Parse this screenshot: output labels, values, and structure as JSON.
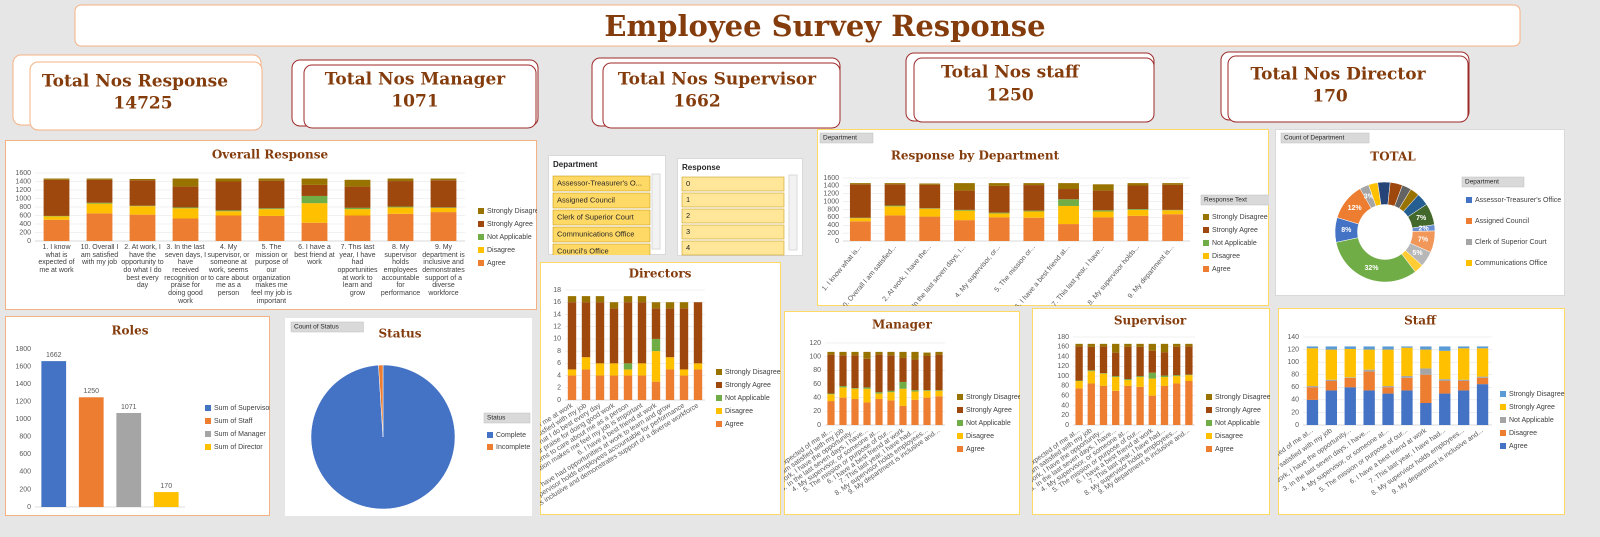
{
  "header": {
    "title": "Employee Survey Response"
  },
  "kpis": [
    {
      "label": "Total Nos Response",
      "value": 14725
    },
    {
      "label": "Total Nos Manager",
      "value": 1071
    },
    {
      "label": "Total Nos Supervisor",
      "value": 1662
    },
    {
      "label": "Total Nos staff",
      "value": 1250
    },
    {
      "label": "Total Nos Director",
      "value": 170
    }
  ],
  "slicers": [
    {
      "title": "Department",
      "items": [
        "Assessor-Treasurer's O...",
        "Assigned Council",
        "Clerk of Superior Court",
        "Communications Office",
        "Council's Office"
      ]
    },
    {
      "title": "Response",
      "items": [
        "0",
        "1",
        "2",
        "3",
        "4"
      ]
    }
  ],
  "chart_data": [
    {
      "type": "bar",
      "title": "Overall Response",
      "grid": true,
      "categories": [
        "1. I know what is expected of me at work",
        "10. Overall I am satisfied with my job",
        "2. At work, I have the opportunity to do what I do best every day",
        "3. In the last seven days, I have received recognition or praise for doing good work",
        "4. My supervisor, or someone at work, seems to care about me as a person",
        "5. The mission or purpose of our organization makes me feel my job is important",
        "6. I have a best friend at work",
        "7. This last year, I have had opportunities at work to learn and grow",
        "8. My supervisor holds employees accountable for performance",
        "9. My department is inclusive and demonstrates support of a diverse workforce"
      ],
      "series": [
        {
          "name": "Agree",
          "color": "#ed7d31",
          "values": [
            500,
            650,
            620,
            530,
            600,
            590,
            430,
            600,
            640,
            680
          ]
        },
        {
          "name": "Disagree",
          "color": "#ffc000",
          "values": [
            80,
            230,
            200,
            240,
            100,
            160,
            460,
            150,
            150,
            100
          ]
        },
        {
          "name": "Not Applicable",
          "color": "#70ad47",
          "values": [
            10,
            20,
            10,
            20,
            20,
            20,
            170,
            30,
            20,
            10
          ]
        },
        {
          "name": "Strongly Agree",
          "color": "#9e480e",
          "values": [
            850,
            540,
            600,
            490,
            680,
            650,
            260,
            500,
            600,
            640
          ]
        },
        {
          "name": "Strongly Disagree",
          "color": "#997300",
          "values": [
            30,
            30,
            30,
            190,
            70,
            50,
            150,
            160,
            60,
            40
          ]
        }
      ],
      "ylim": [
        0,
        1600
      ],
      "yticks": [
        0,
        200,
        400,
        600,
        800,
        1000,
        1200,
        1400,
        1600
      ],
      "legend": "right"
    },
    {
      "type": "bar",
      "title": "Roles",
      "grid": false,
      "categories": [
        "Sum of Supervisor",
        "Sum of Staff",
        "Sum of Manager",
        "Sum of Director"
      ],
      "values": [
        1662,
        1250,
        1071,
        170
      ],
      "colors": [
        "#4472c4",
        "#ed7d31",
        "#a5a5a5",
        "#ffc000"
      ],
      "ylim": [
        0,
        1800
      ],
      "yticks": [
        0,
        200,
        400,
        600,
        800,
        1000,
        1200,
        1400,
        1600,
        1800
      ],
      "legend": "right"
    },
    {
      "type": "pie",
      "title": "Status",
      "button": "Count of Status",
      "legend_title": "Status",
      "categories": [
        "Complete",
        "Incomplete"
      ],
      "values": [
        99,
        1
      ],
      "colors": [
        "#4472c4",
        "#ed7d31"
      ],
      "legend": "right"
    },
    {
      "type": "bar",
      "title": "Directors",
      "grid": true,
      "categories": [
        "1. I know what is expected of me at work",
        "10. Overall I am satisfied with my job",
        "2. At work, I have the opportunity to do what I do best every day",
        "3. In the last seven days, I have received recognition or praise for doing good work",
        "4. My supervisor, or someone at work, seems to care about me as a person",
        "5. The mission or purpose of our organization makes me feel my job is important",
        "6. I have a best friend at work",
        "7. This last year, I have had opportunities at work to learn and grow",
        "8. My supervisor holds employees accountable for performance",
        "9. My department is inclusive and demonstrates support of a diverse workforce"
      ],
      "series": [
        {
          "name": "Agree",
          "color": "#ed7d31",
          "values": [
            4,
            5,
            4,
            4,
            4,
            4,
            3,
            5,
            4,
            5
          ]
        },
        {
          "name": "Disagree",
          "color": "#ffc000",
          "values": [
            1,
            2,
            2,
            2,
            1,
            2,
            5,
            2,
            1,
            1
          ]
        },
        {
          "name": "Not Applicable",
          "color": "#70ad47",
          "values": [
            0,
            0,
            0,
            0,
            1,
            0,
            2,
            0,
            0,
            0
          ]
        },
        {
          "name": "Strongly Agree",
          "color": "#9e480e",
          "values": [
            11,
            9,
            10,
            9,
            10,
            10,
            5,
            8,
            10,
            10
          ]
        },
        {
          "name": "Strongly Disagree",
          "color": "#997300",
          "values": [
            1,
            1,
            1,
            1,
            1,
            1,
            1,
            1,
            1,
            0
          ]
        }
      ],
      "ylim": [
        0,
        18
      ],
      "yticks": [
        0,
        2,
        4,
        6,
        8,
        10,
        12,
        14,
        16,
        18
      ],
      "legend": "right"
    },
    {
      "type": "bar",
      "title": "Response by Department",
      "button": "Department",
      "legend_title": "Response Text",
      "grid": true,
      "categories": [
        "1. I know what is...",
        "10. Overall I am satisfied...",
        "2. At work, I have the...",
        "3. In the last seven days, I...",
        "4. My supervisor, or...",
        "5. The mission or...",
        "6. I have a best friend at...",
        "7. This last year, I have...",
        "8. My supervisor holds...",
        "9. My department is..."
      ],
      "series": [
        {
          "name": "Agree",
          "color": "#ed7d31",
          "values": [
            500,
            650,
            620,
            530,
            600,
            590,
            430,
            600,
            640,
            680
          ]
        },
        {
          "name": "Disagree",
          "color": "#ffc000",
          "values": [
            80,
            230,
            200,
            240,
            100,
            160,
            460,
            150,
            150,
            100
          ]
        },
        {
          "name": "Not Applicable",
          "color": "#70ad47",
          "values": [
            10,
            20,
            10,
            20,
            20,
            20,
            170,
            30,
            20,
            10
          ]
        },
        {
          "name": "Strongly Agree",
          "color": "#9e480e",
          "values": [
            850,
            540,
            600,
            490,
            680,
            650,
            260,
            500,
            600,
            640
          ]
        },
        {
          "name": "Strongly Disagree",
          "color": "#997300",
          "values": [
            30,
            30,
            30,
            190,
            70,
            50,
            150,
            160,
            60,
            40
          ]
        }
      ],
      "ylim": [
        0,
        1600
      ],
      "yticks": [
        0,
        200,
        400,
        600,
        800,
        1000,
        1200,
        1400,
        1600
      ],
      "legend": "right"
    },
    {
      "type": "donut",
      "title": "TOTAL",
      "button": "Count of Department",
      "legend_title": "Department",
      "categories": [
        "Assessor-Treasurer's Office",
        "Assigned Council",
        "Clerk of Superior Court",
        "Communications Office",
        null,
        null,
        null,
        null,
        null,
        null,
        null,
        null,
        null,
        null,
        null
      ],
      "values": [
        8,
        12,
        3,
        3,
        4,
        4,
        3,
        3,
        4,
        7,
        2,
        7,
        5,
        3,
        32
      ],
      "value_labels": [
        "8%",
        "12%",
        "3%",
        null,
        null,
        null,
        null,
        null,
        null,
        "7%",
        "2%",
        "7%",
        "5%",
        null,
        "32%"
      ],
      "colors": [
        "#4472c4",
        "#ed7d31",
        "#a5a5a5",
        "#ffc000",
        "#264478",
        "#9e480e",
        "#636363",
        "#997300",
        "#255e91",
        "#43682b",
        "#698ed0",
        "#f1975a",
        "#b7b7b7",
        "#ffcd33",
        "#70ad47"
      ],
      "legend": "right"
    },
    {
      "type": "bar",
      "title": "Manager",
      "grid": true,
      "categories": [
        "1. I know what is expected of me at...",
        "10. Overall I am satisfied with my job",
        "2. At work, I have the opportunity...",
        "3. In the last seven days, I have...",
        "4. My supervisor, or someone at...",
        "5. The mission or purpose of our...",
        "6. I have a best friend at work",
        "7. This last year, I have had...",
        "8. My supervisor holds employees...",
        "9. My department is inclusive and..."
      ],
      "series": [
        {
          "name": "Agree",
          "color": "#ed7d31",
          "values": [
            35,
            40,
            38,
            33,
            38,
            36,
            28,
            37,
            40,
            42
          ]
        },
        {
          "name": "Disagree",
          "color": "#ffc000",
          "values": [
            10,
            15,
            15,
            20,
            8,
            12,
            25,
            12,
            10,
            8
          ]
        },
        {
          "name": "Not Applicable",
          "color": "#70ad47",
          "values": [
            1,
            2,
            1,
            2,
            2,
            2,
            10,
            2,
            1,
            1
          ]
        },
        {
          "name": "Strongly Agree",
          "color": "#9e480e",
          "values": [
            57,
            45,
            48,
            42,
            55,
            52,
            35,
            45,
            50,
            52
          ]
        },
        {
          "name": "Strongly Disagree",
          "color": "#997300",
          "values": [
            4,
            5,
            5,
            10,
            4,
            5,
            9,
            11,
            5,
            4
          ]
        }
      ],
      "ylim": [
        0,
        120
      ],
      "yticks": [
        0,
        20,
        40,
        60,
        80,
        100,
        120
      ],
      "legend": "right"
    },
    {
      "type": "bar",
      "title": "Supervisor",
      "grid": true,
      "categories": [
        "1. I know what is expected of me at...",
        "10. Overall I am satisfied with my job",
        "2. At work, I have the opportunity...",
        "3. In the last seven days, I have...",
        "4. My supervisor, or someone at...",
        "5. The mission or purpose of our...",
        "6. I have a best friend at work",
        "7. This last year, I have had...",
        "8. My supervisor holds employees...",
        "9. My department is inclusive and..."
      ],
      "series": [
        {
          "name": "Agree",
          "color": "#ed7d31",
          "values": [
            75,
            85,
            80,
            70,
            80,
            78,
            60,
            80,
            85,
            90
          ]
        },
        {
          "name": "Disagree",
          "color": "#ffc000",
          "values": [
            15,
            25,
            25,
            28,
            12,
            20,
            35,
            18,
            15,
            12
          ]
        },
        {
          "name": "Not Applicable",
          "color": "#70ad47",
          "values": [
            1,
            2,
            1,
            2,
            2,
            2,
            12,
            3,
            2,
            1
          ]
        },
        {
          "name": "Strongly Agree",
          "color": "#9e480e",
          "values": [
            70,
            48,
            55,
            48,
            66,
            60,
            45,
            48,
            58,
            58
          ]
        },
        {
          "name": "Strongly Disagree",
          "color": "#997300",
          "values": [
            5,
            6,
            5,
            18,
            6,
            6,
            14,
            17,
            6,
            5
          ]
        }
      ],
      "ylim": [
        0,
        180
      ],
      "yticks": [
        0,
        20,
        40,
        60,
        80,
        100,
        120,
        140,
        160,
        180
      ],
      "legend": "right"
    },
    {
      "type": "bar",
      "title": "Staff",
      "grid": true,
      "categories": [
        "1. I know what is expected of me at...",
        "10. Overall I am satisfied with my job",
        "2. At work, I have the opportunity...",
        "3. In the last seven days, I have...",
        "4. My supervisor, or someone at...",
        "5. The mission or purpose of our...",
        "6. I have a best friend at work",
        "7. This last year, I have had...",
        "8. My supervisor holds employees...",
        "9. My department is inclusive and..."
      ],
      "series": [
        {
          "name": "Agree",
          "color": "#4472c4",
          "values": [
            40,
            55,
            60,
            55,
            50,
            55,
            35,
            50,
            55,
            65
          ]
        },
        {
          "name": "Disagree",
          "color": "#ed7d31",
          "values": [
            20,
            15,
            15,
            30,
            10,
            20,
            45,
            20,
            15,
            10
          ]
        },
        {
          "name": "Not Applicable",
          "color": "#a5a5a5",
          "values": [
            2,
            2,
            1,
            3,
            2,
            3,
            10,
            3,
            2,
            2
          ]
        },
        {
          "name": "Strongly Agree",
          "color": "#ffc000",
          "values": [
            60,
            48,
            45,
            32,
            58,
            45,
            30,
            45,
            50,
            45
          ]
        },
        {
          "name": "Strongly Disagree",
          "color": "#5b9bd5",
          "values": [
            3,
            5,
            4,
            5,
            5,
            2,
            5,
            7,
            3,
            3
          ]
        }
      ],
      "ylim": [
        0,
        140
      ],
      "yticks": [
        0,
        20,
        40,
        60,
        80,
        100,
        120,
        140
      ],
      "legend": "right"
    }
  ]
}
